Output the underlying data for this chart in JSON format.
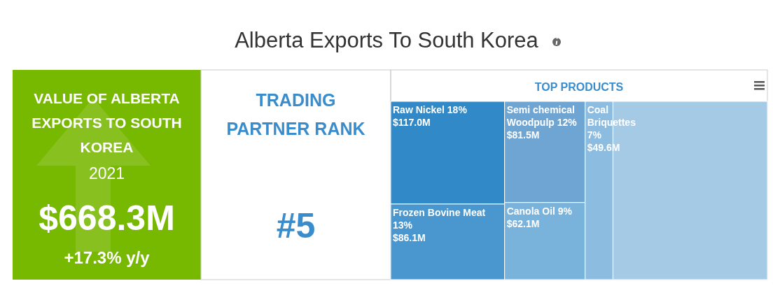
{
  "chart_data": [
    {
      "type": "other",
      "title": "Alberta Exports To South Korea",
      "subtitle": "VALUE OF ALBERTA EXPORTS TO SOUTH KOREA",
      "annotations": [
        "2021",
        "$668.3M",
        "+17.3% y/y"
      ],
      "color": "#77b800"
    },
    {
      "type": "other",
      "title": "TRADING PARTNER RANK",
      "annotations": [
        "#5"
      ],
      "color": "#3a8dcc"
    },
    {
      "type": "other",
      "title": "TOP PRODUCTS",
      "categories": [
        "Raw Nickel 18%",
        "Frozen Bovine Meat 13%",
        "Semi chemical Woodpulp 12%",
        "Canola Oil 9%",
        "Coal Briquettes 7%",
        null
      ],
      "values": [
        117.0,
        86.1,
        81.5,
        62.1,
        49.6,
        null
      ],
      "value_labels": [
        "$117.0M",
        "$86.1M",
        "$81.5M",
        "$62.1M",
        "$49.6M",
        null
      ],
      "colors": [
        "#3289c7",
        "#4a96cf",
        "#6fa5d2",
        "#79b2da",
        "#8cbde0",
        "#a5cae5"
      ]
    }
  ]
}
